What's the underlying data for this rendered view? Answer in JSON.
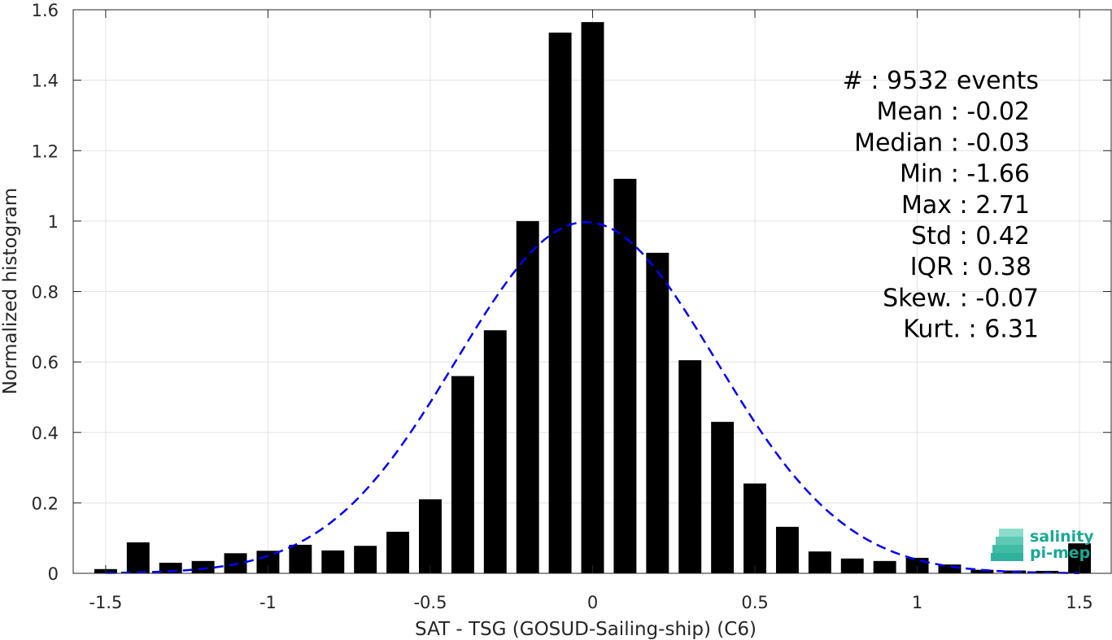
{
  "chart_data": {
    "type": "bar",
    "xlabel": "SAT - TSG (GOSUD-Sailing-ship) (C6)",
    "ylabel": "Normalized histogram",
    "xlim": [
      -1.6,
      1.6
    ],
    "ylim": [
      0,
      1.6
    ],
    "xticks": [
      -1.5,
      -1,
      -0.5,
      0,
      0.5,
      1,
      1.5
    ],
    "xtick_labels": [
      "-1.5",
      "-1",
      "-0.5",
      "0",
      "0.5",
      "1",
      "1.5"
    ],
    "yticks": [
      0,
      0.2,
      0.4,
      0.6,
      0.8,
      1,
      1.2,
      1.4,
      1.6
    ],
    "ytick_labels": [
      "0",
      "0.2",
      "0.4",
      "0.6",
      "0.8",
      "1",
      "1.2",
      "1.4",
      "1.6"
    ],
    "grid": true,
    "bar_color": "#000000",
    "bar_width": 0.07,
    "bins": [
      {
        "x": -1.5,
        "y": 0.012
      },
      {
        "x": -1.4,
        "y": 0.088
      },
      {
        "x": -1.3,
        "y": 0.03
      },
      {
        "x": -1.2,
        "y": 0.035
      },
      {
        "x": -1.1,
        "y": 0.057
      },
      {
        "x": -1.0,
        "y": 0.064
      },
      {
        "x": -0.9,
        "y": 0.081
      },
      {
        "x": -0.8,
        "y": 0.065
      },
      {
        "x": -0.7,
        "y": 0.078
      },
      {
        "x": -0.6,
        "y": 0.118
      },
      {
        "x": -0.5,
        "y": 0.21
      },
      {
        "x": -0.4,
        "y": 0.56
      },
      {
        "x": -0.3,
        "y": 0.69
      },
      {
        "x": -0.2,
        "y": 1.0
      },
      {
        "x": -0.1,
        "y": 1.535
      },
      {
        "x": 0.0,
        "y": 1.565
      },
      {
        "x": 0.1,
        "y": 1.12
      },
      {
        "x": 0.2,
        "y": 0.91
      },
      {
        "x": 0.3,
        "y": 0.605
      },
      {
        "x": 0.4,
        "y": 0.43
      },
      {
        "x": 0.5,
        "y": 0.255
      },
      {
        "x": 0.6,
        "y": 0.132
      },
      {
        "x": 0.7,
        "y": 0.062
      },
      {
        "x": 0.8,
        "y": 0.042
      },
      {
        "x": 0.9,
        "y": 0.035
      },
      {
        "x": 1.0,
        "y": 0.044
      },
      {
        "x": 1.1,
        "y": 0.025
      },
      {
        "x": 1.2,
        "y": 0.01
      },
      {
        "x": 1.3,
        "y": 0.008
      },
      {
        "x": 1.4,
        "y": 0.007
      },
      {
        "x": 1.5,
        "y": 0.085
      }
    ],
    "fit": {
      "type": "gaussian",
      "style": "dashed",
      "color": "#0000ff",
      "mean": -0.02,
      "std": 0.4,
      "x_range": [
        -1.5,
        1.5
      ]
    },
    "annotations": [
      {
        "label": "#  ",
        "value": ": 9532 events"
      },
      {
        "label": "Mean",
        "value": ": -0.02"
      },
      {
        "label": "Median",
        "value": ": -0.03"
      },
      {
        "label": "Min",
        "value": ": -1.66"
      },
      {
        "label": "Max",
        "value": ": 2.71"
      },
      {
        "label": "Std",
        "value": ": 0.42"
      },
      {
        "label": "IQR",
        "value": ": 0.38"
      },
      {
        "label": "Skew.",
        "value": ": -0.07"
      },
      {
        "label": "Kurt.",
        "value": ": 6.31"
      }
    ]
  },
  "logo": {
    "line1": "salinity",
    "line2": "pi-mep",
    "color": "#1aa894"
  }
}
